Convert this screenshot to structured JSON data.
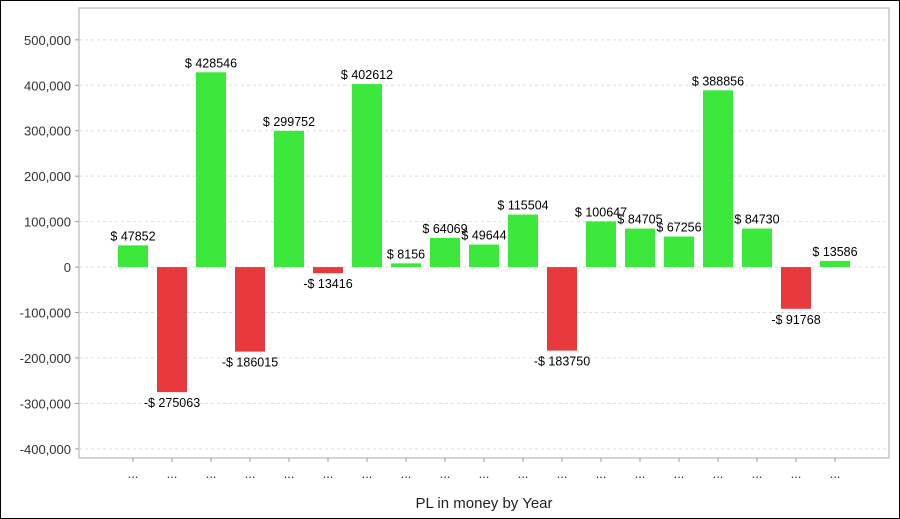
{
  "chart_data": {
    "type": "bar",
    "title": "",
    "xlabel": "PL in money by Year",
    "ylabel": "",
    "ylim": [
      -420000,
      570000
    ],
    "yticks": [
      500000,
      400000,
      300000,
      200000,
      100000,
      0,
      -100000,
      -200000,
      -300000,
      -400000
    ],
    "ytick_labels": [
      "500,000",
      "400,000",
      "300,000",
      "200,000",
      "100,000",
      "0",
      "-100,000",
      "-200,000",
      "-300,000",
      "-400,000"
    ],
    "categories": [
      "...",
      "...",
      "...",
      "...",
      "...",
      "...",
      "...",
      "...",
      "...",
      "...",
      "...",
      "...",
      "...",
      "...",
      "...",
      "...",
      "...",
      "...",
      "..."
    ],
    "values": [
      47852,
      -275063,
      428546,
      -186015,
      299752,
      -13416,
      402612,
      8156,
      64069,
      49644,
      115504,
      -183750,
      100647,
      84705,
      67256,
      388856,
      84730,
      -91768,
      13586
    ],
    "data_labels": [
      "$ 47852",
      "-$ 275063",
      "$ 428546",
      "-$ 186015",
      "$ 299752",
      "-$ 13416",
      "$ 402612",
      "$ 8156",
      "$ 64069",
      "$ 49644",
      "$ 115504",
      "-$ 183750",
      "$ 100647",
      "$ 84705",
      "$ 67256",
      "$ 388856",
      "$ 84730",
      "-$ 91768",
      "$ 13586"
    ],
    "grid": true,
    "colors": {
      "positive": "#3de83d",
      "negative": "#e8393e"
    }
  }
}
